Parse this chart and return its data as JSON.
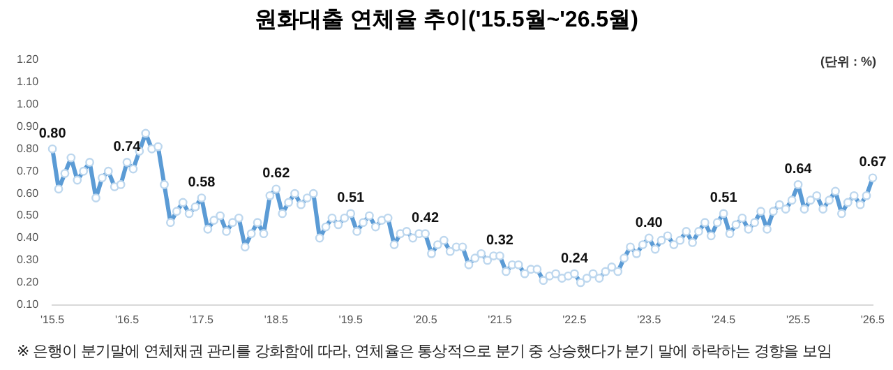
{
  "chart_data": {
    "type": "line",
    "title": "원화대출 연체율 추이('15.5월~'26.5월)",
    "categories": [
      "'15.5",
      null,
      null,
      null,
      null,
      null,
      null,
      null,
      null,
      null,
      null,
      null,
      "'16.5",
      null,
      null,
      null,
      null,
      null,
      null,
      null,
      null,
      null,
      null,
      null,
      "'17.5",
      null,
      null,
      null,
      null,
      null,
      null,
      null,
      null,
      null,
      null,
      null,
      "'18.5",
      null,
      null,
      null,
      null,
      null,
      null,
      null,
      null,
      null,
      null,
      null,
      "'19.5",
      null,
      null,
      null,
      null,
      null,
      null,
      null,
      null,
      null,
      null,
      null,
      "'20.5",
      null,
      null,
      null,
      null,
      null,
      null,
      null,
      null,
      null,
      null,
      null,
      "'21.5",
      null,
      null,
      null,
      null,
      null,
      null,
      null,
      null,
      null,
      null,
      null,
      "'22.5",
      null,
      null,
      null,
      null,
      null,
      null,
      null,
      null,
      null,
      null,
      null,
      "'23.5",
      null,
      null,
      null,
      null,
      null,
      null,
      null,
      null,
      null,
      null,
      null,
      "'24.5",
      null,
      null,
      null,
      null,
      null,
      null,
      null,
      null,
      null,
      null,
      null,
      "'25.5",
      null,
      null,
      null,
      null,
      null,
      null,
      null,
      null,
      null,
      null,
      null,
      "'26.5"
    ],
    "series": [
      {
        "color": "#5b9bd5",
        "values": [
          0.8,
          0.62,
          0.69,
          0.76,
          0.66,
          0.7,
          0.74,
          0.58,
          0.67,
          0.7,
          0.63,
          0.64,
          0.74,
          0.71,
          0.79,
          0.87,
          0.8,
          0.81,
          0.64,
          0.47,
          0.52,
          0.56,
          0.51,
          0.54,
          0.58,
          0.44,
          0.48,
          0.5,
          0.43,
          0.47,
          0.49,
          0.36,
          0.42,
          0.47,
          0.42,
          0.59,
          0.62,
          0.51,
          0.56,
          0.6,
          0.55,
          0.58,
          0.6,
          0.4,
          0.45,
          0.49,
          0.46,
          0.49,
          0.51,
          0.43,
          0.47,
          0.5,
          0.45,
          0.48,
          0.49,
          0.37,
          0.42,
          0.43,
          0.4,
          0.42,
          0.42,
          0.33,
          0.37,
          0.39,
          0.34,
          0.36,
          0.36,
          0.28,
          0.31,
          0.33,
          0.3,
          0.32,
          0.32,
          0.25,
          0.28,
          0.28,
          0.24,
          0.26,
          0.26,
          0.21,
          0.23,
          0.24,
          0.22,
          0.23,
          0.24,
          0.2,
          0.22,
          0.24,
          0.22,
          0.25,
          0.27,
          0.25,
          0.31,
          0.36,
          0.33,
          0.37,
          0.4,
          0.35,
          0.39,
          0.41,
          0.37,
          0.39,
          0.43,
          0.38,
          0.43,
          0.47,
          0.41,
          0.47,
          0.51,
          0.42,
          0.46,
          0.49,
          0.44,
          0.47,
          0.52,
          0.44,
          0.52,
          0.55,
          0.53,
          0.57,
          0.64,
          0.53,
          0.57,
          0.59,
          0.53,
          0.57,
          0.61,
          0.51,
          0.56,
          0.59,
          0.55,
          0.59,
          0.67
        ],
        "value_labels": [
          "0.80",
          null,
          null,
          null,
          null,
          null,
          null,
          null,
          null,
          null,
          null,
          null,
          "0.74",
          null,
          null,
          null,
          null,
          null,
          null,
          null,
          null,
          null,
          null,
          null,
          "0.58",
          null,
          null,
          null,
          null,
          null,
          null,
          null,
          null,
          null,
          null,
          null,
          "0.62",
          null,
          null,
          null,
          null,
          null,
          null,
          null,
          null,
          null,
          null,
          null,
          "0.51",
          null,
          null,
          null,
          null,
          null,
          null,
          null,
          null,
          null,
          null,
          null,
          "0.42",
          null,
          null,
          null,
          null,
          null,
          null,
          null,
          null,
          null,
          null,
          null,
          "0.32",
          null,
          null,
          null,
          null,
          null,
          null,
          null,
          null,
          null,
          null,
          null,
          "0.24",
          null,
          null,
          null,
          null,
          null,
          null,
          null,
          null,
          null,
          null,
          null,
          "0.40",
          null,
          null,
          null,
          null,
          null,
          null,
          null,
          null,
          null,
          null,
          null,
          "0.51",
          null,
          null,
          null,
          null,
          null,
          null,
          null,
          null,
          null,
          null,
          null,
          "0.64",
          null,
          null,
          null,
          null,
          null,
          null,
          null,
          null,
          null,
          null,
          null,
          "0.67"
        ]
      }
    ],
    "ylim": [
      0.1,
      1.2
    ],
    "yticks": [
      {
        "value": 0.1,
        "label": "0.10"
      },
      {
        "value": 0.2,
        "label": "0.20"
      },
      {
        "value": 0.3,
        "label": "0.30"
      },
      {
        "value": 0.4,
        "label": "0.40"
      },
      {
        "value": 0.5,
        "label": "0.50"
      },
      {
        "value": 0.6,
        "label": "0.60"
      },
      {
        "value": 0.7,
        "label": "0.70"
      },
      {
        "value": 0.8,
        "label": "0.80"
      },
      {
        "value": 0.9,
        "label": "0.90"
      },
      {
        "value": 1.0,
        "label": "1.00"
      },
      {
        "value": 1.1,
        "label": "1.10"
      },
      {
        "value": 1.2,
        "label": "1.20"
      }
    ],
    "annotations": [
      "(단위 : %)",
      "※ 은행이 분기말에 연체채권 관리를 강화함에 따라, 연체율은 통상적으로 분기 중 상승했다가 분기 말에 하락하는 경향을 보임"
    ],
    "marker": "circle",
    "line_style": "solid",
    "legend": false,
    "grid": false
  }
}
